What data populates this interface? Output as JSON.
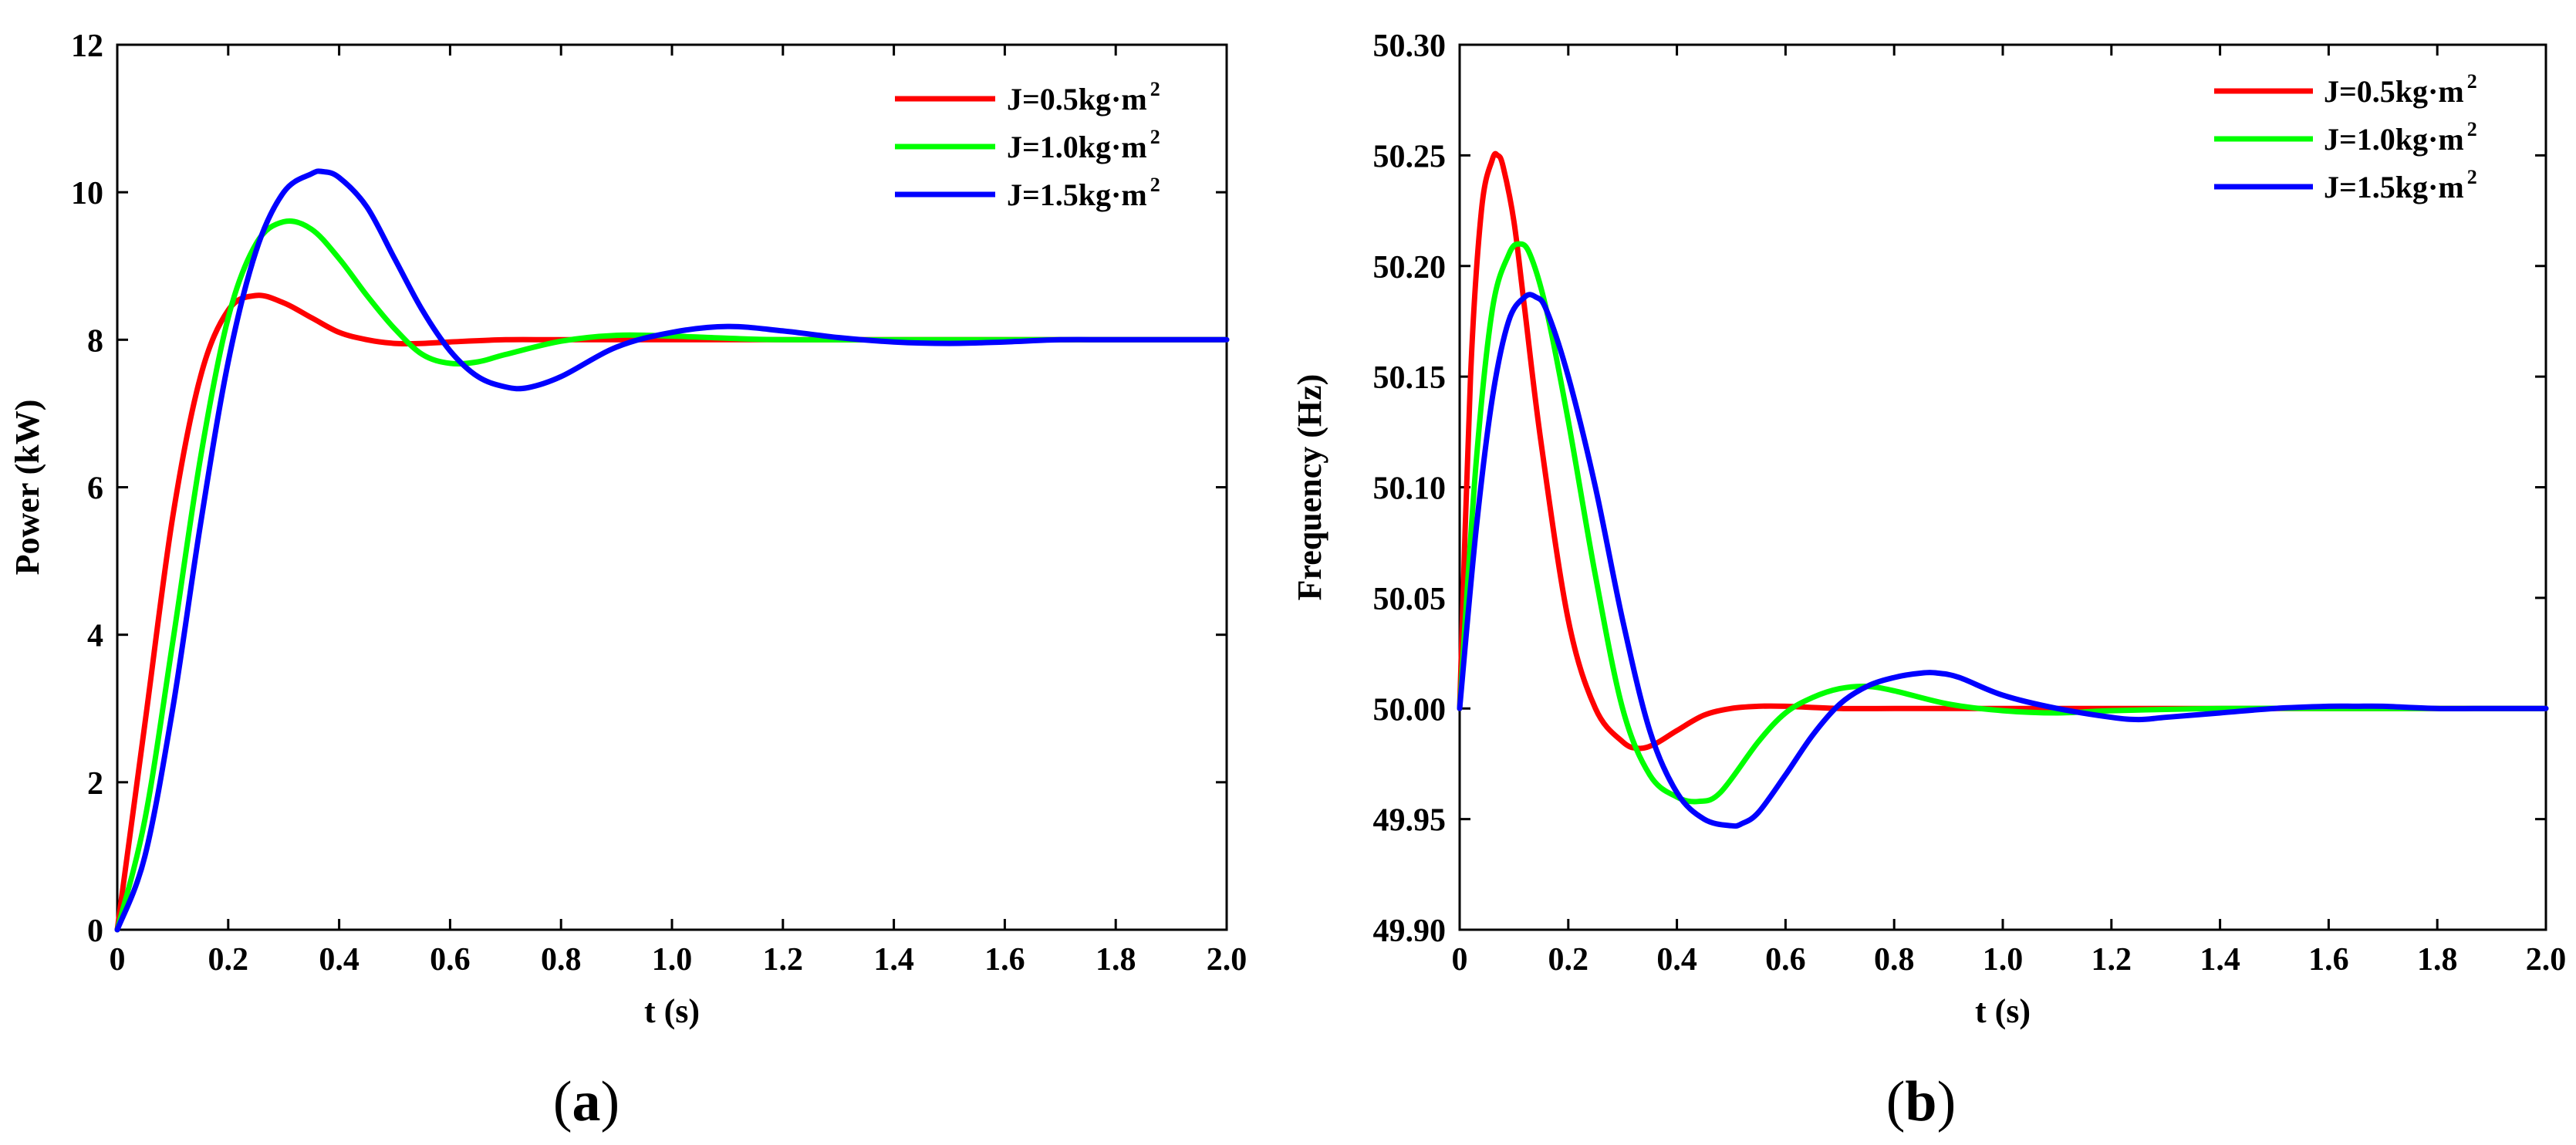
{
  "chart_data": [
    {
      "type": "line",
      "panel_label": "(a)",
      "panel_label_parts": [
        "(",
        "a",
        ")"
      ],
      "xlabel": "t (s)",
      "ylabel": "Power  (kW)",
      "xlim": [
        0,
        2.0
      ],
      "ylim": [
        0,
        12
      ],
      "xticks": [
        0,
        0.2,
        0.4,
        0.6,
        0.8,
        1.0,
        1.2,
        1.4,
        1.6,
        1.8,
        2.0
      ],
      "xtick_labels": [
        "0",
        "0.2",
        "0.4",
        "0.6",
        "0.8",
        "1.0",
        "1.2",
        "1.4",
        "1.6",
        "1.8",
        "2.0"
      ],
      "yticks": [
        0,
        2,
        4,
        6,
        8,
        10,
        12
      ],
      "ytick_labels": [
        "0",
        "2",
        "4",
        "6",
        "8",
        "10",
        "12"
      ],
      "grid": false,
      "legend_position": "top-right",
      "series": [
        {
          "name": "J=0.5kg·m²",
          "legend_main": "J=0.5kg·m",
          "legend_sup": "2",
          "color": "#ff0000",
          "x": [
            0,
            0.05,
            0.1,
            0.15,
            0.2,
            0.25,
            0.3,
            0.35,
            0.4,
            0.45,
            0.5,
            0.55,
            0.6,
            0.7,
            0.8,
            1.0,
            1.2,
            1.4,
            1.6,
            1.8,
            2.0
          ],
          "y": [
            0,
            2.8,
            5.6,
            7.5,
            8.4,
            8.6,
            8.5,
            8.3,
            8.1,
            8.0,
            7.95,
            7.95,
            7.97,
            8.0,
            8.0,
            8.0,
            8.0,
            8.0,
            8.0,
            8.0,
            8.0
          ]
        },
        {
          "name": "J=1.0kg·m²",
          "legend_main": "J=1.0kg·m",
          "legend_sup": "2",
          "color": "#00ff00",
          "x": [
            0,
            0.05,
            0.1,
            0.15,
            0.2,
            0.25,
            0.3,
            0.35,
            0.4,
            0.45,
            0.5,
            0.55,
            0.6,
            0.65,
            0.7,
            0.8,
            0.9,
            1.0,
            1.1,
            1.2,
            1.4,
            1.6,
            1.8,
            2.0
          ],
          "y": [
            0,
            1.5,
            3.9,
            6.4,
            8.3,
            9.3,
            9.6,
            9.5,
            9.1,
            8.6,
            8.15,
            7.8,
            7.68,
            7.7,
            7.8,
            7.98,
            8.06,
            8.05,
            8.02,
            8.0,
            8.0,
            8.0,
            8.0,
            8.0
          ]
        },
        {
          "name": "J=1.5kg·m²",
          "legend_main": "J=1.5kg·m",
          "legend_sup": "2",
          "color": "#0000ff",
          "x": [
            0,
            0.05,
            0.1,
            0.15,
            0.2,
            0.25,
            0.3,
            0.35,
            0.37,
            0.4,
            0.45,
            0.5,
            0.55,
            0.6,
            0.65,
            0.7,
            0.74,
            0.8,
            0.9,
            1.0,
            1.1,
            1.2,
            1.3,
            1.4,
            1.5,
            1.6,
            1.7,
            1.8,
            2.0
          ],
          "y": [
            0,
            1.0,
            3.0,
            5.5,
            7.7,
            9.2,
            10.0,
            10.25,
            10.28,
            10.2,
            9.8,
            9.1,
            8.4,
            7.85,
            7.5,
            7.36,
            7.35,
            7.5,
            7.9,
            8.1,
            8.18,
            8.12,
            8.03,
            7.97,
            7.95,
            7.97,
            8.0,
            8.0,
            8.0
          ]
        }
      ]
    },
    {
      "type": "line",
      "panel_label": "(b)",
      "panel_label_parts": [
        "(",
        "b",
        ")"
      ],
      "xlabel": "t (s)",
      "ylabel": "Frequency (Hz)",
      "xlim": [
        0,
        2.0
      ],
      "ylim": [
        49.9,
        50.3
      ],
      "xticks": [
        0,
        0.2,
        0.4,
        0.6,
        0.8,
        1.0,
        1.2,
        1.4,
        1.6,
        1.8,
        2.0
      ],
      "xtick_labels": [
        "0",
        "0.2",
        "0.4",
        "0.6",
        "0.8",
        "1.0",
        "1.2",
        "1.4",
        "1.6",
        "1.8",
        "2.0"
      ],
      "yticks": [
        49.9,
        49.95,
        50.0,
        50.05,
        50.1,
        50.15,
        50.2,
        50.25,
        50.3
      ],
      "ytick_labels": [
        "49.90",
        "49.95",
        "50.00",
        "50.05",
        "50.10",
        "50.15",
        "50.20",
        "50.25",
        "50.30"
      ],
      "grid": false,
      "legend_position": "top-right",
      "series": [
        {
          "name": "J=0.5kg·m²",
          "legend_main": "J=0.5kg·m",
          "legend_sup": "2",
          "color": "#ff0000",
          "x": [
            0,
            0.02,
            0.04,
            0.06,
            0.07,
            0.08,
            0.1,
            0.12,
            0.15,
            0.2,
            0.25,
            0.3,
            0.33,
            0.36,
            0.4,
            0.45,
            0.5,
            0.55,
            0.6,
            0.7,
            0.8,
            1.0,
            1.2,
            1.4,
            1.6,
            1.8,
            2.0
          ],
          "y": [
            50.0,
            50.15,
            50.225,
            50.248,
            50.25,
            50.245,
            50.22,
            50.18,
            50.12,
            50.04,
            50.0,
            49.985,
            49.982,
            49.984,
            49.99,
            49.997,
            50.0,
            50.001,
            50.001,
            50.0,
            50.0,
            50.0,
            50.0,
            50.0,
            50.0,
            50.0,
            50.0
          ]
        },
        {
          "name": "J=1.0kg·m²",
          "legend_main": "J=1.0kg·m",
          "legend_sup": "2",
          "color": "#00ff00",
          "x": [
            0,
            0.03,
            0.06,
            0.09,
            0.11,
            0.13,
            0.16,
            0.2,
            0.25,
            0.3,
            0.35,
            0.4,
            0.44,
            0.48,
            0.55,
            0.6,
            0.65,
            0.7,
            0.75,
            0.8,
            0.9,
            1.0,
            1.1,
            1.2,
            1.4,
            1.6,
            1.8,
            2.0
          ],
          "y": [
            50.0,
            50.11,
            50.18,
            50.205,
            50.21,
            50.205,
            50.18,
            50.13,
            50.06,
            50.0,
            49.97,
            49.96,
            49.958,
            49.962,
            49.985,
            49.998,
            50.005,
            50.009,
            50.01,
            50.008,
            50.002,
            49.999,
            49.998,
            49.999,
            50.0,
            50.0,
            50.0,
            50.0
          ]
        },
        {
          "name": "J=1.5kg·m²",
          "legend_main": "J=1.5kg·m",
          "legend_sup": "2",
          "color": "#0000ff",
          "x": [
            0,
            0.03,
            0.06,
            0.09,
            0.12,
            0.14,
            0.16,
            0.2,
            0.25,
            0.3,
            0.35,
            0.4,
            0.45,
            0.5,
            0.52,
            0.55,
            0.6,
            0.65,
            0.7,
            0.75,
            0.8,
            0.85,
            0.88,
            0.92,
            1.0,
            1.1,
            1.2,
            1.25,
            1.3,
            1.4,
            1.5,
            1.6,
            1.65,
            1.7,
            1.8,
            1.9,
            2.0
          ],
          "y": [
            50.0,
            50.08,
            50.14,
            50.175,
            50.186,
            50.186,
            50.18,
            50.15,
            50.1,
            50.04,
            49.99,
            49.962,
            49.95,
            49.947,
            49.948,
            49.953,
            49.97,
            49.988,
            50.002,
            50.01,
            50.014,
            50.016,
            50.016,
            50.014,
            50.006,
            50.0,
            49.996,
            49.995,
            49.996,
            49.998,
            50.0,
            50.001,
            50.001,
            50.001,
            50.0,
            50.0,
            50.0
          ]
        }
      ]
    }
  ]
}
